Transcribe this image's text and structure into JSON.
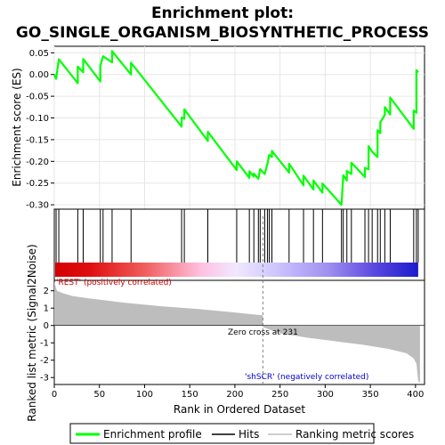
{
  "chart_data": {
    "type": "line",
    "title_line1": "Enrichment plot:",
    "title_line2": "GO_SINGLE_ORGANISM_BIOSYNTHETIC_PROCESS",
    "xlabel": "Rank in Ordered Dataset",
    "es_ylabel": "Enrichment score (ES)",
    "metric_ylabel": "Ranked list metric (Signal2Noise)",
    "xlim": [
      0,
      410
    ],
    "x_ticks": [
      "0",
      "50",
      "100",
      "150",
      "200",
      "250",
      "300",
      "350",
      "400"
    ],
    "es_ylim": [
      -0.31,
      0.065
    ],
    "es_ticks": [
      "0.05",
      "0.00",
      "-0.05",
      "-0.10",
      "-0.15",
      "-0.20",
      "-0.25",
      "-0.30"
    ],
    "metric_ylim": [
      -3.4,
      2.6
    ],
    "metric_ticks": [
      "2",
      "1",
      "0",
      "-1",
      "-2",
      "-3"
    ],
    "pos_label": "'REST' (positively correlated)",
    "neg_label": "'shSCR' (negatively correlated)",
    "zero_cross_label": "Zero cross at 231",
    "zero_cross": 231,
    "hits": [
      2,
      5,
      26,
      32,
      51,
      54,
      64,
      85,
      141,
      144,
      170,
      202,
      216,
      221,
      226,
      228,
      233,
      236,
      238,
      241,
      260,
      276,
      287,
      297,
      318,
      320,
      324,
      329,
      344,
      348,
      352,
      358,
      361,
      366,
      372,
      398,
      401,
      403
    ],
    "es_profile": [
      [
        0,
        0.0
      ],
      [
        2,
        -0.01
      ],
      [
        5,
        0.035
      ],
      [
        26,
        -0.02
      ],
      [
        26,
        0.018
      ],
      [
        32,
        0.005
      ],
      [
        32,
        0.036
      ],
      [
        51,
        -0.016
      ],
      [
        51,
        0.02
      ],
      [
        54,
        0.042
      ],
      [
        64,
        0.028
      ],
      [
        64,
        0.054
      ],
      [
        85,
        0.0
      ],
      [
        85,
        0.027
      ],
      [
        141,
        -0.12
      ],
      [
        141,
        -0.099
      ],
      [
        144,
        -0.102
      ],
      [
        144,
        -0.08
      ],
      [
        170,
        -0.153
      ],
      [
        170,
        -0.132
      ],
      [
        202,
        -0.22
      ],
      [
        202,
        -0.2
      ],
      [
        216,
        -0.238
      ],
      [
        216,
        -0.223
      ],
      [
        221,
        -0.235
      ],
      [
        221,
        -0.228
      ],
      [
        226,
        -0.24
      ],
      [
        228,
        -0.218
      ],
      [
        233,
        -0.229
      ],
      [
        236,
        -0.205
      ],
      [
        238,
        -0.185
      ],
      [
        241,
        -0.19
      ],
      [
        241,
        -0.176
      ],
      [
        260,
        -0.226
      ],
      [
        260,
        -0.205
      ],
      [
        276,
        -0.255
      ],
      [
        276,
        -0.233
      ],
      [
        287,
        -0.265
      ],
      [
        287,
        -0.244
      ],
      [
        297,
        -0.272
      ],
      [
        297,
        -0.251
      ],
      [
        318,
        -0.3
      ],
      [
        320,
        -0.232
      ],
      [
        324,
        -0.244
      ],
      [
        324,
        -0.222
      ],
      [
        329,
        -0.229
      ],
      [
        329,
        -0.203
      ],
      [
        344,
        -0.236
      ],
      [
        344,
        -0.215
      ],
      [
        348,
        -0.218
      ],
      [
        348,
        -0.165
      ],
      [
        352,
        -0.178
      ],
      [
        358,
        -0.19
      ],
      [
        358,
        -0.128
      ],
      [
        361,
        -0.135
      ],
      [
        361,
        -0.11
      ],
      [
        366,
        -0.093
      ],
      [
        366,
        -0.075
      ],
      [
        372,
        -0.092
      ],
      [
        372,
        -0.053
      ],
      [
        398,
        -0.125
      ],
      [
        398,
        -0.083
      ],
      [
        401,
        -0.088
      ],
      [
        401,
        0.01
      ],
      [
        403,
        0.005
      ]
    ],
    "metric_profile": [
      [
        0,
        2.52
      ],
      [
        3,
        2.0
      ],
      [
        10,
        1.85
      ],
      [
        20,
        1.7
      ],
      [
        40,
        1.55
      ],
      [
        80,
        1.3
      ],
      [
        120,
        1.1
      ],
      [
        160,
        0.95
      ],
      [
        200,
        0.75
      ],
      [
        231,
        0.58
      ],
      [
        231,
        -0.1
      ],
      [
        250,
        -0.45
      ],
      [
        280,
        -0.7
      ],
      [
        310,
        -0.9
      ],
      [
        340,
        -1.1
      ],
      [
        370,
        -1.35
      ],
      [
        390,
        -1.6
      ],
      [
        398,
        -1.9
      ],
      [
        401,
        -2.2
      ],
      [
        403,
        -3.2
      ],
      [
        405,
        -3.3
      ]
    ],
    "legend": [
      "Enrichment profile",
      "Hits",
      "Ranking metric scores"
    ],
    "colors": {
      "es_line": "#00ff00",
      "metric_fill": "#bdbdbd",
      "hit": "#000000",
      "gradient_pos": "#d40000",
      "gradient_neg": "#1a1acc",
      "pos_label": "#cc0000",
      "neg_label": "#0000cc"
    }
  }
}
